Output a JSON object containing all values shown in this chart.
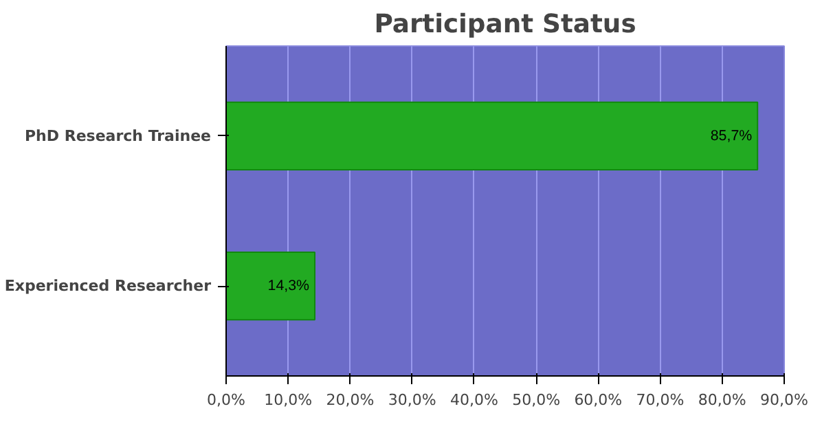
{
  "chart_data": {
    "type": "bar",
    "title": "Participant Status",
    "orientation": "horizontal",
    "categories": [
      "PhD Research Trainee",
      "Experienced Researcher"
    ],
    "values": [
      85.7,
      14.3
    ],
    "color": "#22aa22",
    "value_labels": [
      "85,7%",
      "14,3%"
    ],
    "xlim": [
      0,
      90
    ],
    "xticks": [
      {
        "value": 0,
        "label": "0,0%"
      },
      {
        "value": 10,
        "label": "10,0%"
      },
      {
        "value": 20,
        "label": "20,0%"
      },
      {
        "value": 30,
        "label": "30,0%"
      },
      {
        "value": 40,
        "label": "40,0%"
      },
      {
        "value": 50,
        "label": "50,0%"
      },
      {
        "value": 60,
        "label": "60,0%"
      },
      {
        "value": 70,
        "label": "70,0%"
      },
      {
        "value": 80,
        "label": "80,0%"
      },
      {
        "value": 90,
        "label": "90,0%"
      }
    ],
    "grid": "x"
  }
}
